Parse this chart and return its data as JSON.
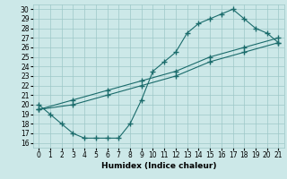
{
  "line1_x": [
    0,
    1,
    2,
    3,
    4,
    5,
    6,
    7,
    8,
    9,
    10,
    11,
    12,
    13,
    14,
    15,
    16,
    17,
    18,
    19,
    20,
    21
  ],
  "line1_y": [
    20.0,
    19.0,
    18.0,
    17.0,
    16.5,
    16.5,
    16.5,
    16.5,
    18.0,
    20.5,
    23.5,
    24.5,
    25.5,
    27.5,
    28.5,
    29.0,
    29.5,
    30.0,
    29.0,
    28.0,
    27.5,
    26.5
  ],
  "line2_x": [
    0,
    3,
    6,
    9,
    12,
    15,
    18,
    21
  ],
  "line2_y": [
    19.5,
    20.5,
    21.5,
    22.5,
    23.5,
    25.0,
    26.0,
    27.0
  ],
  "line3_x": [
    0,
    3,
    6,
    9,
    12,
    15,
    18,
    21
  ],
  "line3_y": [
    19.5,
    20.0,
    21.0,
    22.0,
    23.0,
    24.5,
    25.5,
    26.5
  ],
  "line_color": "#1a6b6b",
  "bg_color": "#cce8e8",
  "grid_color": "#9ec8c8",
  "xlabel": "Humidex (Indice chaleur)",
  "xlim": [
    -0.5,
    21.5
  ],
  "ylim": [
    15.5,
    30.5
  ],
  "yticks": [
    16,
    17,
    18,
    19,
    20,
    21,
    22,
    23,
    24,
    25,
    26,
    27,
    28,
    29,
    30
  ],
  "xticks": [
    0,
    1,
    2,
    3,
    4,
    5,
    6,
    7,
    8,
    9,
    10,
    11,
    12,
    13,
    14,
    15,
    16,
    17,
    18,
    19,
    20,
    21
  ],
  "marker": "+",
  "markersize": 4,
  "linewidth": 0.8,
  "tick_fontsize": 5.5,
  "xlabel_fontsize": 6.5
}
